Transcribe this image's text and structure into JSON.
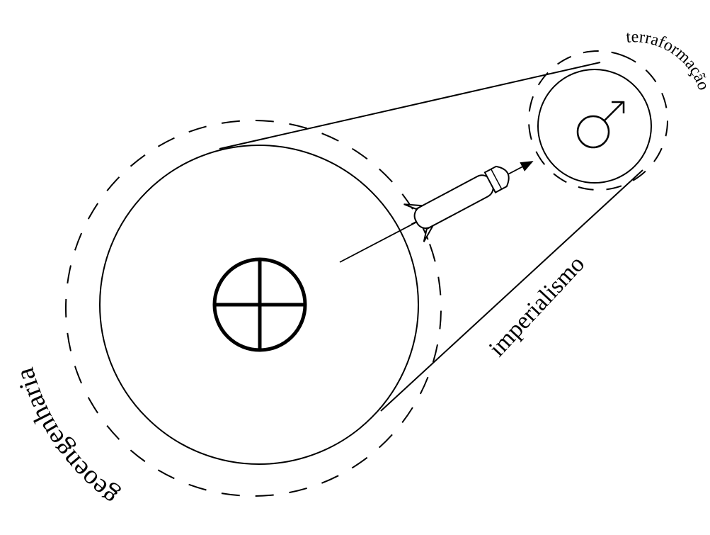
{
  "labels": {
    "earth_region": "geoengenharia",
    "connection": "imperialismo",
    "mars_region": "terraformação"
  },
  "symbols": {
    "earth": "earth-symbol-icon",
    "mars": "mars-symbol-icon",
    "vehicle": "rocket-icon"
  },
  "colors": {
    "stroke": "#000000",
    "background": "#ffffff"
  }
}
